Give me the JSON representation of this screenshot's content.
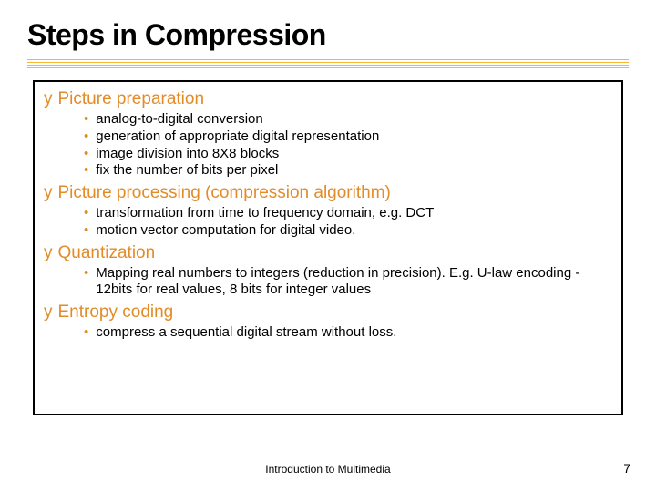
{
  "title": "Steps in Compression",
  "title_fontsize": 32,
  "title_color": "#000000",
  "accent_color": "#e38b27",
  "underline_color": "#f7b733",
  "border_color": "#000000",
  "background_color": "#ffffff",
  "heading_fontsize": 19,
  "body_fontsize": 15,
  "footer_fontsize": 12,
  "sections": [
    {
      "heading": "Picture preparation",
      "items": [
        "analog-to-digital conversion",
        "generation of appropriate digital representation",
        "image division into 8X8 blocks",
        "fix the number of bits per pixel"
      ]
    },
    {
      "heading": "Picture processing (compression algorithm)",
      "items": [
        "transformation from time to frequency domain, e.g. DCT",
        "motion vector computation for digital video."
      ]
    },
    {
      "heading": "Quantization",
      "items": [
        "Mapping real numbers to integers (reduction in precision). E.g. U-law encoding - 12bits for real values, 8 bits for integer values"
      ]
    },
    {
      "heading": "Entropy coding",
      "items": [
        "compress a sequential digital stream without loss."
      ]
    }
  ],
  "footer": "Introduction to Multimedia",
  "page_number": "7"
}
